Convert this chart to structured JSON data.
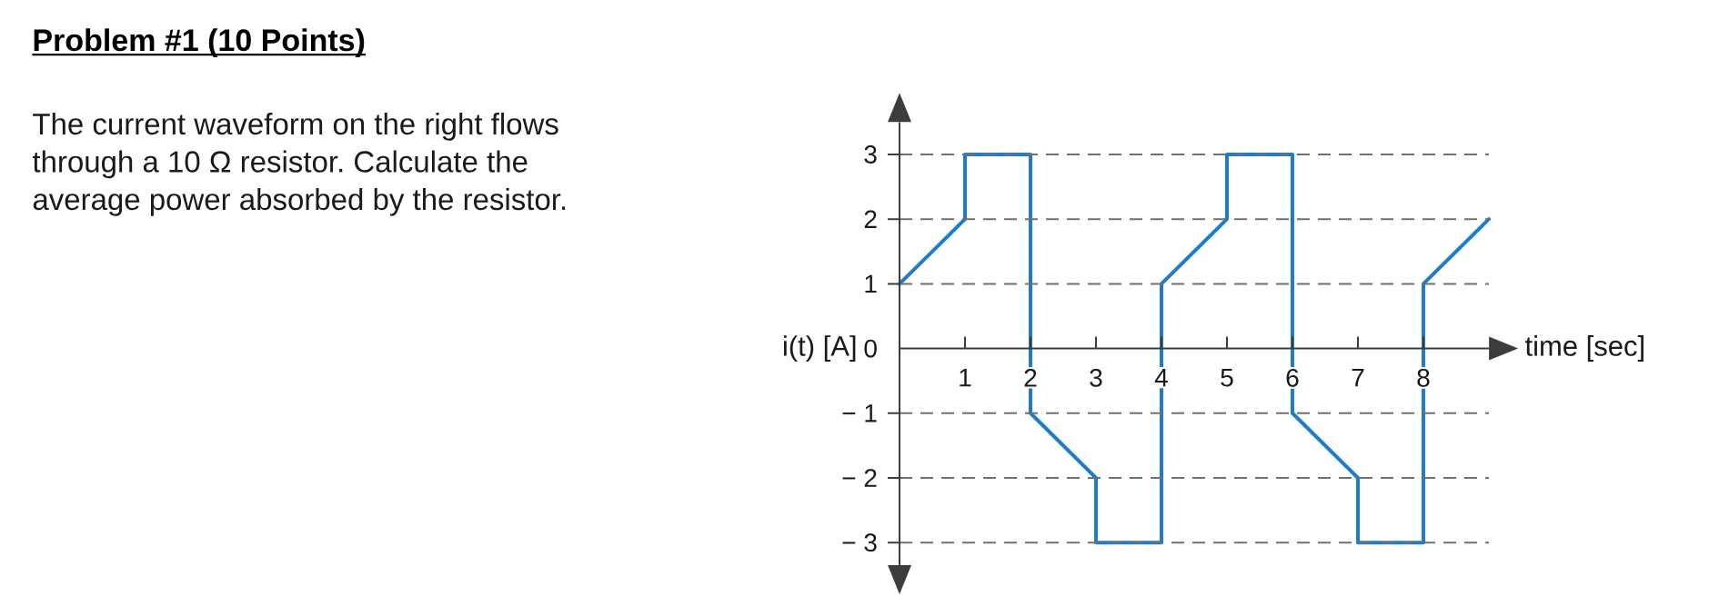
{
  "chart_data": {
    "type": "line",
    "title": "Problem #1 (10 Points)",
    "annotations": [
      "The current waveform on the right flows through a 10 Ω resistor. Calculate the average power absorbed by the resistor."
    ],
    "xlabel": "time [sec]",
    "ylabel": "i(t) [A]",
    "x": [
      0,
      1,
      1,
      2,
      2,
      3,
      3,
      4,
      4,
      5,
      5,
      6,
      6,
      7,
      7,
      8,
      8,
      9
    ],
    "values": [
      1,
      2,
      3,
      3,
      -1,
      -2,
      -3,
      -3,
      1,
      2,
      3,
      3,
      -1,
      -2,
      -3,
      -3,
      1,
      2
    ],
    "color": "#1b7dcc",
    "xlim": [
      0,
      9
    ],
    "ylim": [
      -3.35,
      3.5
    ],
    "xticks": [
      1,
      2,
      3,
      4,
      5,
      6,
      7,
      8
    ],
    "yticks": [
      {
        "value": -3,
        "label": "− 3"
      },
      {
        "value": -2,
        "label": "− 2"
      },
      {
        "value": -1,
        "label": "− 1"
      },
      0,
      1,
      2,
      3
    ],
    "grid": "y"
  }
}
